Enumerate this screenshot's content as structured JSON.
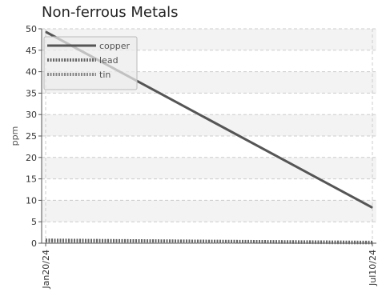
{
  "chart_data": {
    "type": "line",
    "title": "Non-ferrous Metals",
    "xlabel": "",
    "ylabel": "ppm",
    "x": [
      "Jan20/24",
      "Jul10/24"
    ],
    "xlim": [
      "Jan20/24",
      "Jul10/24"
    ],
    "ylim": [
      0,
      50
    ],
    "yticks": [
      0,
      5,
      10,
      15,
      20,
      25,
      30,
      35,
      40,
      45,
      50
    ],
    "xticks": [
      "Jan20/24",
      "Jul10/24"
    ],
    "grid": true,
    "legend_position": "top-left",
    "series": [
      {
        "name": "copper",
        "values": [
          49.3,
          8.3
        ],
        "color": "#555555",
        "style": "solid"
      },
      {
        "name": "lead",
        "values": [
          0.7,
          0.2
        ],
        "color": "#666666",
        "style": "dotted"
      },
      {
        "name": "tin",
        "values": [
          0.5,
          0.1
        ],
        "color": "#888888",
        "style": "dotted"
      }
    ]
  }
}
